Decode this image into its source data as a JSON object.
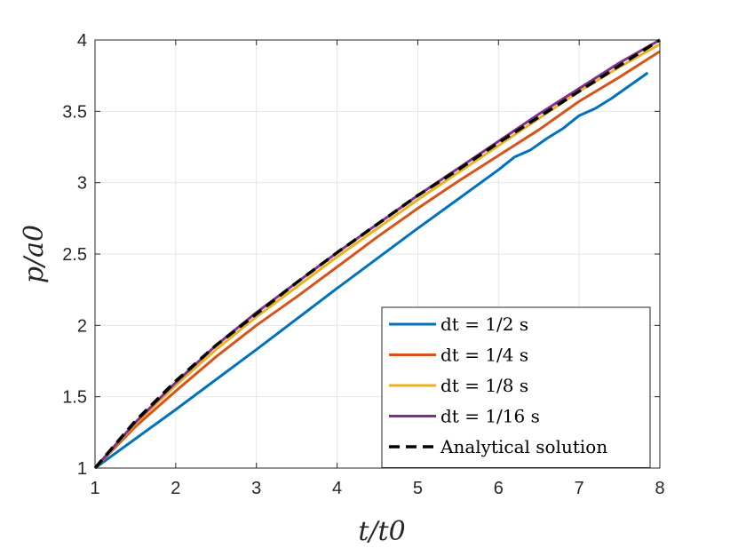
{
  "chart_data": {
    "type": "line",
    "xlabel": "t/t0",
    "ylabel": "p/a0",
    "xlim": [
      1,
      8
    ],
    "ylim": [
      1,
      4
    ],
    "xticks": [
      "1",
      "2",
      "3",
      "4",
      "5",
      "6",
      "7",
      "8"
    ],
    "yticks": [
      "1",
      "1.5",
      "2",
      "2.5",
      "3",
      "3.5",
      "4"
    ],
    "grid": true,
    "legend_position": "bottom-right",
    "series": [
      {
        "name": "dt = 1/2 s",
        "color": "#0072BD",
        "style": "solid",
        "x": [
          1,
          2,
          3,
          4,
          5,
          6,
          6.2,
          6.4,
          6.6,
          6.8,
          7,
          7.2,
          7.4,
          7.6,
          7.85
        ],
        "y": [
          1,
          1.41,
          1.83,
          2.26,
          2.68,
          3.09,
          3.18,
          3.23,
          3.31,
          3.38,
          3.47,
          3.52,
          3.59,
          3.67,
          3.77
        ]
      },
      {
        "name": "dt = 1/4 s",
        "color": "#D95319",
        "style": "solid",
        "x": [
          1,
          1.5,
          2,
          2.5,
          3,
          3.5,
          4,
          4.5,
          5,
          5.5,
          6,
          6.5,
          7,
          7.5,
          8
        ],
        "y": [
          1,
          1.29,
          1.54,
          1.78,
          2.0,
          2.2,
          2.41,
          2.62,
          2.82,
          3.01,
          3.19,
          3.37,
          3.57,
          3.74,
          3.92
        ]
      },
      {
        "name": "dt = 1/8 s",
        "color": "#EDB120",
        "style": "solid",
        "x": [
          1,
          1.5,
          2,
          2.5,
          3,
          3.5,
          4,
          4.5,
          5,
          5.5,
          6,
          6.5,
          7,
          7.5,
          8
        ],
        "y": [
          1,
          1.31,
          1.58,
          1.83,
          2.06,
          2.27,
          2.48,
          2.68,
          2.88,
          3.07,
          3.26,
          3.45,
          3.64,
          3.81,
          3.97
        ]
      },
      {
        "name": "dt = 1/16 s",
        "color": "#7E2F8E",
        "style": "solid",
        "x": [
          1,
          1.5,
          2,
          2.5,
          3,
          3.5,
          4,
          4.5,
          5,
          5.5,
          6,
          6.5,
          7,
          7.5,
          8
        ],
        "y": [
          1,
          1.32,
          1.6,
          1.86,
          2.09,
          2.3,
          2.51,
          2.71,
          2.91,
          3.1,
          3.29,
          3.48,
          3.66,
          3.84,
          4.0
        ]
      },
      {
        "name": "Analytical solution",
        "color": "#000000",
        "style": "dashed",
        "x": [
          1,
          1.5,
          2,
          2.5,
          3,
          3.5,
          4,
          4.5,
          5,
          5.5,
          6,
          6.5,
          7,
          7.5,
          8
        ],
        "y": [
          1,
          1.33,
          1.61,
          1.86,
          2.08,
          2.3,
          2.51,
          2.71,
          2.91,
          3.09,
          3.28,
          3.46,
          3.64,
          3.82,
          4.0
        ]
      }
    ]
  }
}
